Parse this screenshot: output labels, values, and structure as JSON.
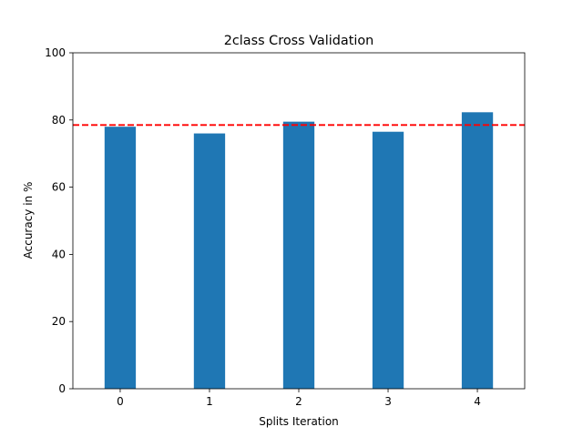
{
  "chart_data": {
    "type": "bar",
    "title": "2class Cross Validation",
    "xlabel": "Splits Iteration",
    "ylabel": "Accuracy in %",
    "categories": [
      "0",
      "1",
      "2",
      "3",
      "4"
    ],
    "values": [
      78.0,
      76.0,
      79.5,
      76.5,
      82.3
    ],
    "ylim": [
      0,
      100
    ],
    "yticks": [
      "0",
      "20",
      "40",
      "60",
      "80",
      "100"
    ],
    "grid": false,
    "colors": {
      "bar": "#1f77b4",
      "mean_line": "#ff0000"
    },
    "reference_lines": [
      {
        "value": 78.5,
        "style": "dashed",
        "color": "#ff0000"
      }
    ]
  }
}
